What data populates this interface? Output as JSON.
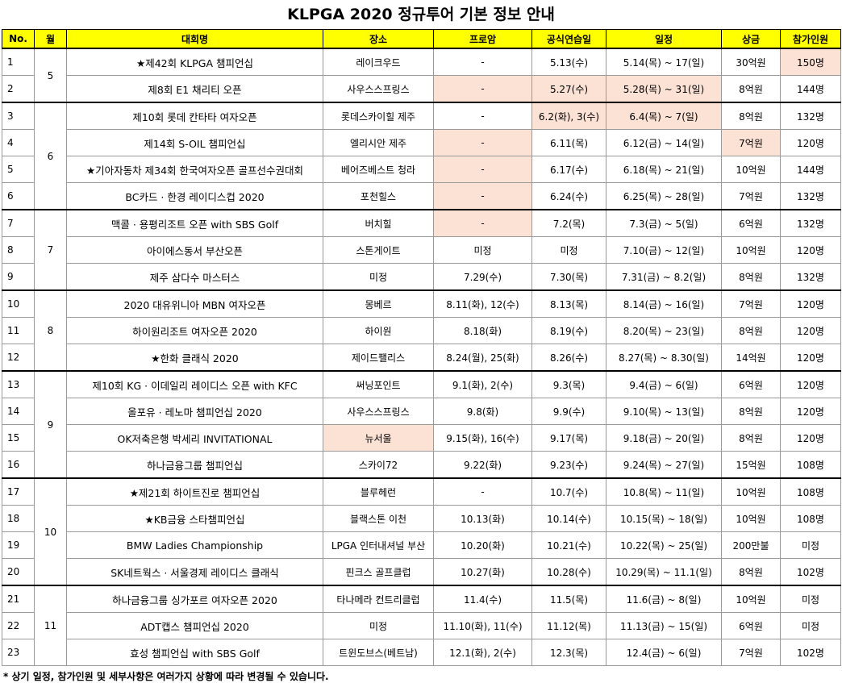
{
  "title": "KLPGA 2020 정규투어 기본 정보 안내",
  "headers": [
    "No.",
    "월",
    "대회명",
    "장소",
    "프로암",
    "공식연습일",
    "일정",
    "상금",
    "참가인원"
  ],
  "groups": [
    {
      "month": "5",
      "rows": [
        {
          "no": "1",
          "name": "★제42회 KLPGA 챔피언십",
          "venue": "레이크우드",
          "proam": "-",
          "practice": "5.13(수)",
          "schedule": "5.14(목) ~ 17(일)",
          "prize": "30억원",
          "players": "150명",
          "hl": [
            "players"
          ]
        },
        {
          "no": "2",
          "name": "제8회 E1 채리티 오픈",
          "venue": "사우스스프링스",
          "proam": "-",
          "practice": "5.27(수)",
          "schedule": "5.28(목) ~ 31(일)",
          "prize": "8억원",
          "players": "144명",
          "hl": [
            "proam",
            "practice",
            "schedule"
          ]
        }
      ]
    },
    {
      "month": "6",
      "rows": [
        {
          "no": "3",
          "name": "제10회 롯데 칸타타 여자오픈",
          "venue": "롯데스카이힐 제주",
          "proam": "-",
          "practice": "6.2(화), 3(수)",
          "schedule": "6.4(목) ~ 7(일)",
          "prize": "8억원",
          "players": "132명",
          "hl": [
            "practice",
            "schedule"
          ]
        },
        {
          "no": "4",
          "name": "제14회 S-OIL 챔피언십",
          "venue": "엘리시안 제주",
          "proam": "-",
          "practice": "6.11(목)",
          "schedule": "6.12(금) ~ 14(일)",
          "prize": "7억원",
          "players": "120명",
          "hl": [
            "proam",
            "prize"
          ]
        },
        {
          "no": "5",
          "name": "★기아자동차 제34회 한국여자오픈 골프선수권대회",
          "venue": "베어즈베스트 청라",
          "proam": "-",
          "practice": "6.17(수)",
          "schedule": "6.18(목) ~ 21(일)",
          "prize": "10억원",
          "players": "144명",
          "hl": [
            "proam"
          ]
        },
        {
          "no": "6",
          "name": "BC카드 · 한경 레이디스컵 2020",
          "venue": "포천힐스",
          "proam": "-",
          "practice": "6.24(수)",
          "schedule": "6.25(목) ~ 28(일)",
          "prize": "7억원",
          "players": "132명",
          "hl": [
            "proam"
          ]
        }
      ]
    },
    {
      "month": "7",
      "rows": [
        {
          "no": "7",
          "name": "맥콜 · 용평리조트 오픈 with SBS Golf",
          "venue": "버치힐",
          "proam": "-",
          "practice": "7.2(목)",
          "schedule": "7.3(금) ~ 5(일)",
          "prize": "6억원",
          "players": "132명",
          "hl": [
            "proam"
          ]
        },
        {
          "no": "8",
          "name": "아이에스동서 부산오픈",
          "venue": "스톤게이트",
          "proam": "미정",
          "practice": "미정",
          "schedule": "7.10(금) ~ 12(일)",
          "prize": "10억원",
          "players": "120명",
          "hl": []
        },
        {
          "no": "9",
          "name": "제주 삼다수 마스터스",
          "venue": "미정",
          "proam": "7.29(수)",
          "practice": "7.30(목)",
          "schedule": "7.31(금) ~ 8.2(일)",
          "prize": "8억원",
          "players": "132명",
          "hl": []
        }
      ]
    },
    {
      "month": "8",
      "rows": [
        {
          "no": "10",
          "name": "2020 대유위니아 MBN 여자오픈",
          "venue": "몽베르",
          "proam": "8.11(화), 12(수)",
          "practice": "8.13(목)",
          "schedule": "8.14(금) ~ 16(일)",
          "prize": "7억원",
          "players": "120명",
          "hl": []
        },
        {
          "no": "11",
          "name": "하이원리조트 여자오픈 2020",
          "venue": "하이원",
          "proam": "8.18(화)",
          "practice": "8.19(수)",
          "schedule": "8.20(목) ~ 23(일)",
          "prize": "8억원",
          "players": "120명",
          "hl": []
        },
        {
          "no": "12",
          "name": "★한화 클래식 2020",
          "venue": "제이드팰리스",
          "proam": "8.24(월), 25(화)",
          "practice": "8.26(수)",
          "schedule": "8.27(목) ~ 8.30(일)",
          "prize": "14억원",
          "players": "120명",
          "hl": []
        }
      ]
    },
    {
      "month": "9",
      "rows": [
        {
          "no": "13",
          "name": "제10회 KG · 이데일리 레이디스 오픈 with KFC",
          "venue": "써닝포인트",
          "proam": "9.1(화), 2(수)",
          "practice": "9.3(목)",
          "schedule": "9.4(금) ~ 6(일)",
          "prize": "6억원",
          "players": "120명",
          "hl": []
        },
        {
          "no": "14",
          "name": "올포유 · 레노마 챔피언십 2020",
          "venue": "사우스스프링스",
          "proam": "9.8(화)",
          "practice": "9.9(수)",
          "schedule": "9.10(목) ~ 13(일)",
          "prize": "8억원",
          "players": "120명",
          "hl": []
        },
        {
          "no": "15",
          "name": "OK저축은행 박세리 INVITATIONAL",
          "venue": "뉴서울",
          "proam": "9.15(화), 16(수)",
          "practice": "9.17(목)",
          "schedule": "9.18(금) ~ 20(일)",
          "prize": "8억원",
          "players": "120명",
          "hl": [
            "venue"
          ]
        },
        {
          "no": "16",
          "name": "하나금융그룹 챔피언십",
          "venue": "스카이72",
          "proam": "9.22(화)",
          "practice": "9.23(수)",
          "schedule": "9.24(목) ~ 27(일)",
          "prize": "15억원",
          "players": "108명",
          "hl": []
        }
      ]
    },
    {
      "month": "10",
      "rows": [
        {
          "no": "17",
          "name": "★제21회 하이트진로 챔피언십",
          "venue": "블루헤런",
          "proam": "-",
          "practice": "10.7(수)",
          "schedule": "10.8(목) ~ 11(일)",
          "prize": "10억원",
          "players": "108명",
          "hl": []
        },
        {
          "no": "18",
          "name": "★KB금융 스타챔피언십",
          "venue": "블랙스톤 이천",
          "proam": "10.13(화)",
          "practice": "10.14(수)",
          "schedule": "10.15(목) ~ 18(일)",
          "prize": "10억원",
          "players": "108명",
          "hl": []
        },
        {
          "no": "19",
          "name": "BMW Ladies Championship",
          "venue": "LPGA 인터내셔널 부산",
          "proam": "10.20(화)",
          "practice": "10.21(수)",
          "schedule": "10.22(목) ~ 25(일)",
          "prize": "200만불",
          "players": "미정",
          "hl": []
        },
        {
          "no": "20",
          "name": "SK네트웍스 · 서울경제 레이디스 클래식",
          "venue": "핀크스 골프클럽",
          "proam": "10.27(화)",
          "practice": "10.28(수)",
          "schedule": "10.29(목) ~ 11.1(일)",
          "prize": "8억원",
          "players": "102명",
          "hl": []
        }
      ]
    },
    {
      "month": "11",
      "rows": [
        {
          "no": "21",
          "name": "하나금융그룹 싱가포르 여자오픈 2020",
          "venue": "타나메라 컨트리클럽",
          "proam": "11.4(수)",
          "practice": "11.5(목)",
          "schedule": "11.6(금) ~ 8(일)",
          "prize": "10억원",
          "players": "미정",
          "hl": []
        },
        {
          "no": "22",
          "name": "ADT캡스 챔피언십 2020",
          "venue": "미정",
          "proam": "11.10(화), 11(수)",
          "practice": "11.12(목)",
          "schedule": "11.13(금) ~ 15(일)",
          "prize": "6억원",
          "players": "미정",
          "hl": []
        },
        {
          "no": "23",
          "name": "효성 챔피언십 with SBS Golf",
          "venue": "트윈도브스(베트남)",
          "proam": "12.1(화), 2(수)",
          "practice": "12.3(목)",
          "schedule": "12.4(금) ~ 6(일)",
          "prize": "7억원",
          "players": "102명",
          "hl": []
        }
      ]
    }
  ],
  "note": "* 상기 일정, 참가인원 및 세부사항은 여러가지 상황에 따라 변경될 수 있습니다.",
  "colors": {
    "header_bg": "#ffff00",
    "highlight": "#fbe2d5"
  }
}
